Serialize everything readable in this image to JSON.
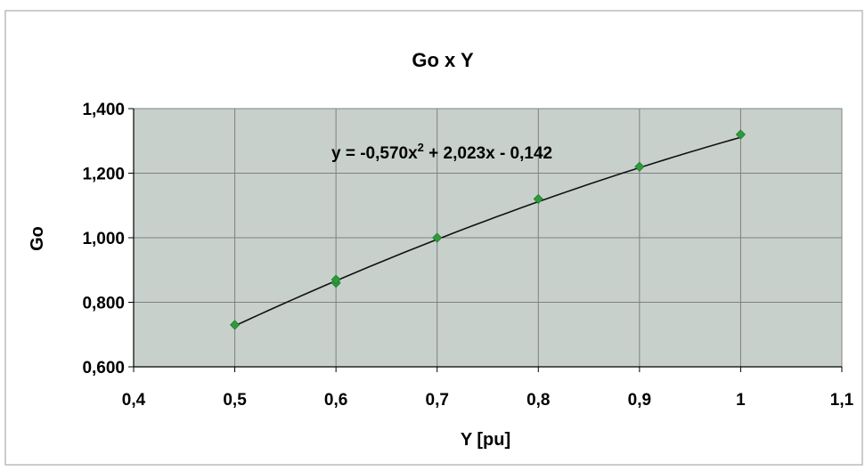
{
  "chart_data": {
    "type": "scatter",
    "title": "Go x Y",
    "xlabel": "Y [pu]",
    "ylabel": "Go",
    "xlim": [
      0.4,
      1.1
    ],
    "ylim": [
      0.6,
      1.4
    ],
    "x_ticks": [
      "0,4",
      "0,5",
      "0,6",
      "0,7",
      "0,8",
      "0,9",
      "1",
      "1,1"
    ],
    "y_ticks": [
      "0,600",
      "0,800",
      "1,000",
      "1,200",
      "1,400"
    ],
    "grid": true,
    "legend": "none",
    "colors": {
      "plot_background": "#c8d0cc",
      "marker": "#2e9a3a",
      "trendline": "#111111",
      "gridline": "#808080"
    },
    "series": [
      {
        "points": [
          {
            "x": 0.5,
            "y": 0.73
          },
          {
            "x": 0.6,
            "y": 0.86
          },
          {
            "x": 0.6,
            "y": 0.87
          },
          {
            "x": 0.7,
            "y": 1.0
          },
          {
            "x": 0.8,
            "y": 1.12
          },
          {
            "x": 0.9,
            "y": 1.22
          },
          {
            "x": 1.0,
            "y": 1.32
          }
        ]
      }
    ],
    "trendline": {
      "type": "polynomial",
      "coefficients": [
        -0.57,
        2.023,
        -0.142
      ],
      "x_range": [
        0.5,
        1.0
      ],
      "equation_main": "y = -0,570x",
      "equation_exp": "2",
      "equation_rest": " + 2,023x - 0,142"
    }
  }
}
